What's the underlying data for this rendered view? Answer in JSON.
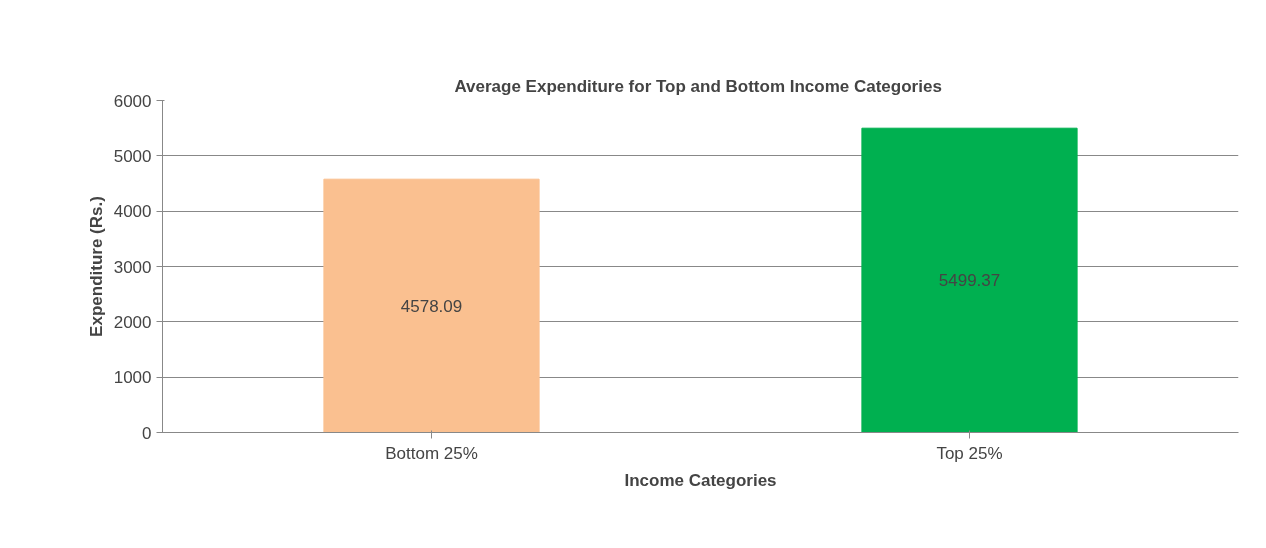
{
  "chart_data": {
    "type": "bar",
    "title": "Average  Expenditure for Top and Bottom Income Categories",
    "xlabel": "Income Categories",
    "ylabel": "Expenditure (Rs.)",
    "categories": [
      "Bottom 25%",
      "Top 25%"
    ],
    "values": [
      4578.09,
      5499.37
    ],
    "colors": [
      "#fac090",
      "#00b050"
    ],
    "ylim": [
      0,
      6000
    ],
    "yticks": [
      0,
      1000,
      2000,
      3000,
      4000,
      5000,
      6000
    ],
    "grid": "y",
    "data_labels": true
  }
}
